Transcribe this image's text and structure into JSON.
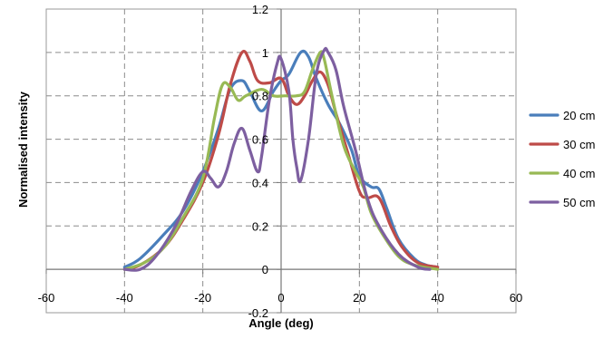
{
  "chart_data": {
    "type": "line",
    "xlabel": "Angle (deg)",
    "ylabel": "Normalised intensity",
    "xlim": [
      -60,
      60
    ],
    "ylim": [
      -0.2,
      1.2
    ],
    "x_ticks": [
      "-60",
      "-40",
      "-20",
      "0",
      "20",
      "40",
      "60"
    ],
    "y_ticks": [
      "-0.2",
      "0",
      "0.2",
      "0.4",
      "0.6",
      "0.8",
      "1",
      "1.2"
    ],
    "grid": "dashed",
    "legend_position": "right",
    "series": [
      {
        "name": "20 cm",
        "color": "#4a7ebb",
        "points": [
          [
            -40,
            0.01
          ],
          [
            -36,
            0.05
          ],
          [
            -30,
            0.16
          ],
          [
            -25,
            0.27
          ],
          [
            -20,
            0.45
          ],
          [
            -16,
            0.65
          ],
          [
            -13,
            0.83
          ],
          [
            -10,
            0.87
          ],
          [
            -8,
            0.82
          ],
          [
            -5,
            0.73
          ],
          [
            -2,
            0.82
          ],
          [
            0,
            0.87
          ],
          [
            2,
            0.9
          ],
          [
            5,
            1.0
          ],
          [
            7,
            0.98
          ],
          [
            9,
            0.88
          ],
          [
            12,
            0.76
          ],
          [
            15,
            0.67
          ],
          [
            18,
            0.55
          ],
          [
            20,
            0.43
          ],
          [
            23,
            0.38
          ],
          [
            25,
            0.37
          ],
          [
            27,
            0.28
          ],
          [
            30,
            0.14
          ],
          [
            34,
            0.05
          ],
          [
            37,
            0.02
          ],
          [
            40,
            0.01
          ]
        ]
      },
      {
        "name": "30 cm",
        "color": "#be4b48",
        "points": [
          [
            -40,
            0.0
          ],
          [
            -36,
            0.02
          ],
          [
            -30,
            0.1
          ],
          [
            -25,
            0.23
          ],
          [
            -20,
            0.4
          ],
          [
            -16,
            0.62
          ],
          [
            -13,
            0.85
          ],
          [
            -10,
            1.0
          ],
          [
            -8,
            0.96
          ],
          [
            -6,
            0.87
          ],
          [
            -3,
            0.86
          ],
          [
            0,
            0.88
          ],
          [
            2,
            0.8
          ],
          [
            4,
            0.76
          ],
          [
            6,
            0.8
          ],
          [
            8,
            0.87
          ],
          [
            10,
            0.91
          ],
          [
            12,
            0.85
          ],
          [
            14,
            0.72
          ],
          [
            17,
            0.54
          ],
          [
            20,
            0.36
          ],
          [
            22,
            0.33
          ],
          [
            25,
            0.33
          ],
          [
            28,
            0.2
          ],
          [
            31,
            0.1
          ],
          [
            35,
            0.03
          ],
          [
            40,
            0.01
          ]
        ]
      },
      {
        "name": "40 cm",
        "color": "#98b954",
        "points": [
          [
            -40,
            0.0
          ],
          [
            -35,
            0.03
          ],
          [
            -30,
            0.1
          ],
          [
            -25,
            0.24
          ],
          [
            -20,
            0.42
          ],
          [
            -17,
            0.7
          ],
          [
            -15,
            0.85
          ],
          [
            -13,
            0.84
          ],
          [
            -11,
            0.78
          ],
          [
            -9,
            0.8
          ],
          [
            -5,
            0.83
          ],
          [
            -2,
            0.8
          ],
          [
            1,
            0.8
          ],
          [
            4,
            0.8
          ],
          [
            6,
            0.82
          ],
          [
            8,
            0.92
          ],
          [
            10,
            1.0
          ],
          [
            11,
            0.97
          ],
          [
            13,
            0.8
          ],
          [
            16,
            0.57
          ],
          [
            19,
            0.45
          ],
          [
            21,
            0.38
          ],
          [
            23,
            0.26
          ],
          [
            26,
            0.16
          ],
          [
            30,
            0.06
          ],
          [
            34,
            0.02
          ],
          [
            40,
            0.0
          ]
        ]
      },
      {
        "name": "50 cm",
        "color": "#7d5fa0",
        "points": [
          [
            -40,
            0.0
          ],
          [
            -36,
            0.0
          ],
          [
            -32,
            0.06
          ],
          [
            -27,
            0.2
          ],
          [
            -23,
            0.36
          ],
          [
            -20,
            0.45
          ],
          [
            -18,
            0.42
          ],
          [
            -16,
            0.38
          ],
          [
            -14,
            0.45
          ],
          [
            -12,
            0.58
          ],
          [
            -10,
            0.65
          ],
          [
            -8,
            0.55
          ],
          [
            -6,
            0.45
          ],
          [
            -5,
            0.52
          ],
          [
            -3,
            0.78
          ],
          [
            -1,
            0.95
          ],
          [
            0,
            0.97
          ],
          [
            2,
            0.82
          ],
          [
            3,
            0.6
          ],
          [
            4,
            0.47
          ],
          [
            5,
            0.41
          ],
          [
            7,
            0.6
          ],
          [
            9,
            0.9
          ],
          [
            11,
            1.01
          ],
          [
            12,
            1.0
          ],
          [
            14,
            0.92
          ],
          [
            16,
            0.75
          ],
          [
            19,
            0.55
          ],
          [
            22,
            0.33
          ],
          [
            25,
            0.2
          ],
          [
            30,
            0.07
          ],
          [
            35,
            0.01
          ],
          [
            38,
            0.0
          ]
        ]
      }
    ]
  }
}
